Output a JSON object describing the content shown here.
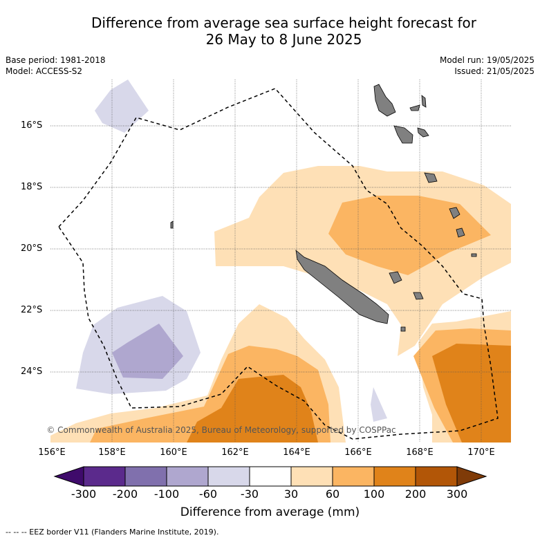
{
  "title_line1": "Difference from average sea surface height forecast for",
  "title_line2": "26 May to 8 June 2025",
  "meta_left": [
    "Base period: 1981-2018",
    "Model: ACCESS-S2"
  ],
  "meta_right": [
    "Model run: 19/05/2025",
    "Issued: 21/05/2025"
  ],
  "copyright": "© Commonwealth of Australia 2025, Bureau of Meteorology, supported by COSPPac",
  "lat_labels": [
    "16°S",
    "18°S",
    "20°S",
    "22°S",
    "24°S"
  ],
  "lon_labels": [
    "156°E",
    "158°E",
    "160°E",
    "162°E",
    "164°E",
    "166°E",
    "168°E",
    "170°E"
  ],
  "colorbar": {
    "label": "Difference from average (mm)",
    "ticks": [
      "-300",
      "-200",
      "-100",
      "-60",
      "-30",
      "30",
      "60",
      "100",
      "200",
      "300"
    ],
    "colors": [
      "#3f0b6b",
      "#5b2a8c",
      "#8070ad",
      "#afa7cf",
      "#d8d8ea",
      "#ffffff",
      "#fee0b6",
      "#fbb562",
      "#e0831a",
      "#b25607",
      "#7f3b08"
    ]
  },
  "legend_text": "--  --  -- EEZ border V11 (Flanders Marine Institute, 2019).",
  "colors": {
    "land": "#808080",
    "eez": "#000000",
    "grid": "#555555"
  }
}
